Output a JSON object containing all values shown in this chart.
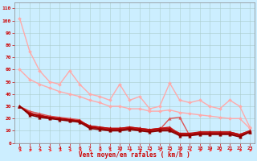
{
  "xlabel": "Vent moyen/en rafales ( km/h )",
  "background_color": "#cceeff",
  "grid_color": "#aacccc",
  "xlim": [
    -0.5,
    23.5
  ],
  "ylim": [
    0,
    115
  ],
  "yticks": [
    0,
    10,
    20,
    30,
    40,
    50,
    60,
    70,
    80,
    90,
    100,
    110
  ],
  "xticks": [
    0,
    1,
    2,
    3,
    4,
    5,
    6,
    7,
    8,
    9,
    10,
    11,
    12,
    13,
    14,
    15,
    16,
    17,
    18,
    19,
    20,
    21,
    22,
    23
  ],
  "tick_color": "#cc0000",
  "label_color": "#cc0000",
  "series": [
    {
      "color": "#ffaaaa",
      "lw": 1.0,
      "marker": "D",
      "markersize": 2.0,
      "y": [
        102,
        75,
        59,
        50,
        48,
        59,
        48,
        40,
        38,
        35,
        48,
        35,
        38,
        28,
        30,
        49,
        35,
        33,
        35,
        30,
        28,
        35,
        30,
        13
      ]
    },
    {
      "color": "#ffaaaa",
      "lw": 1.0,
      "marker": "D",
      "markersize": 2.0,
      "y": [
        60,
        52,
        48,
        45,
        42,
        40,
        38,
        35,
        33,
        30,
        30,
        28,
        28,
        26,
        26,
        27,
        25,
        24,
        23,
        22,
        21,
        20,
        20,
        12
      ]
    },
    {
      "color": "#dd5555",
      "lw": 1.0,
      "marker": "^",
      "markersize": 2.5,
      "y": [
        30,
        26,
        24,
        22,
        21,
        20,
        19,
        13,
        12,
        11,
        11,
        12,
        11,
        10,
        11,
        20,
        21,
        6,
        8,
        8,
        8,
        8,
        6,
        9
      ]
    },
    {
      "color": "#cc2222",
      "lw": 1.0,
      "marker": "^",
      "markersize": 2.5,
      "y": [
        30,
        25,
        22,
        21,
        20,
        19,
        18,
        14,
        13,
        12,
        12,
        13,
        12,
        11,
        12,
        13,
        7,
        7,
        9,
        9,
        9,
        9,
        7,
        10
      ]
    },
    {
      "color": "#bb1111",
      "lw": 1.0,
      "marker": "^",
      "markersize": 2.5,
      "y": [
        30,
        24,
        23,
        21,
        20,
        19,
        18,
        14,
        13,
        12,
        12,
        13,
        12,
        11,
        12,
        12,
        8,
        8,
        9,
        9,
        9,
        9,
        7,
        10
      ]
    },
    {
      "color": "#aa0000",
      "lw": 1.2,
      "marker": "^",
      "markersize": 2.5,
      "y": [
        30,
        24,
        22,
        21,
        20,
        19,
        18,
        13,
        12,
        11,
        11,
        12,
        11,
        10,
        11,
        11,
        7,
        7,
        8,
        8,
        8,
        8,
        6,
        9
      ]
    },
    {
      "color": "#880000",
      "lw": 1.2,
      "marker": "^",
      "markersize": 2.5,
      "y": [
        30,
        23,
        21,
        20,
        19,
        18,
        17,
        12,
        11,
        10,
        10,
        11,
        10,
        9,
        10,
        10,
        6,
        6,
        7,
        7,
        7,
        7,
        5,
        9
      ]
    }
  ]
}
